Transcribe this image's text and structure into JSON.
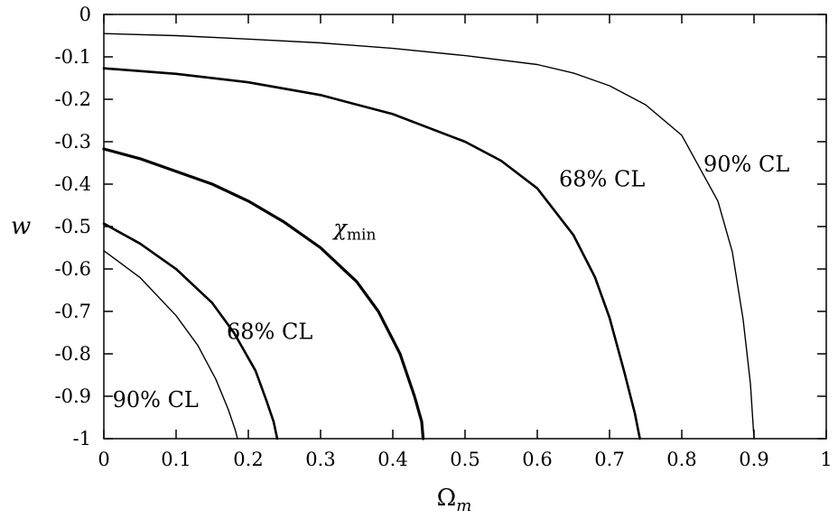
{
  "chart_data": {
    "type": "line",
    "xlabel": "Ω",
    "xlabel_sub": "m",
    "ylabel": "w",
    "xlim": [
      0,
      1
    ],
    "ylim": [
      -1,
      0
    ],
    "grid": false,
    "x_ticks": [
      {
        "value": 0,
        "label": "0"
      },
      {
        "value": 0.1,
        "label": "0.1"
      },
      {
        "value": 0.2,
        "label": "0.2"
      },
      {
        "value": 0.3,
        "label": "0.3"
      },
      {
        "value": 0.4,
        "label": "0.4"
      },
      {
        "value": 0.5,
        "label": "0.5"
      },
      {
        "value": 0.6,
        "label": "0.6"
      },
      {
        "value": 0.7,
        "label": "0.7"
      },
      {
        "value": 0.8,
        "label": "0.8"
      },
      {
        "value": 0.9,
        "label": "0.9"
      },
      {
        "value": 1,
        "label": "1"
      }
    ],
    "y_ticks": [
      {
        "value": 0,
        "label": "0"
      },
      {
        "value": -0.1,
        "label": "-0.1"
      },
      {
        "value": -0.2,
        "label": "-0.2"
      },
      {
        "value": -0.3,
        "label": "-0.3"
      },
      {
        "value": -0.4,
        "label": "-0.4"
      },
      {
        "value": -0.5,
        "label": "-0.5"
      },
      {
        "value": -0.6,
        "label": "-0.6"
      },
      {
        "value": -0.7,
        "label": "-0.7"
      },
      {
        "value": -0.8,
        "label": "-0.8"
      },
      {
        "value": -0.9,
        "label": "-0.9"
      },
      {
        "value": -1,
        "label": "-1"
      }
    ],
    "series": [
      {
        "width": 1.4,
        "points": [
          [
            0,
            -0.045
          ],
          [
            0.1,
            -0.05
          ],
          [
            0.2,
            -0.058
          ],
          [
            0.3,
            -0.067
          ],
          [
            0.4,
            -0.08
          ],
          [
            0.5,
            -0.097
          ],
          [
            0.6,
            -0.118
          ],
          [
            0.65,
            -0.138
          ],
          [
            0.7,
            -0.168
          ],
          [
            0.75,
            -0.213
          ],
          [
            0.8,
            -0.285
          ],
          [
            0.85,
            -0.44
          ],
          [
            0.87,
            -0.56
          ],
          [
            0.885,
            -0.72
          ],
          [
            0.895,
            -0.87
          ],
          [
            0.9,
            -1.0
          ]
        ]
      },
      {
        "width": 2.6,
        "points": [
          [
            0,
            -0.127
          ],
          [
            0.1,
            -0.14
          ],
          [
            0.2,
            -0.16
          ],
          [
            0.3,
            -0.19
          ],
          [
            0.4,
            -0.235
          ],
          [
            0.5,
            -0.3
          ],
          [
            0.55,
            -0.345
          ],
          [
            0.6,
            -0.41
          ],
          [
            0.65,
            -0.52
          ],
          [
            0.68,
            -0.62
          ],
          [
            0.7,
            -0.715
          ],
          [
            0.72,
            -0.84
          ],
          [
            0.735,
            -0.94
          ],
          [
            0.742,
            -1.0
          ]
        ]
      },
      {
        "width": 3.2,
        "points": [
          [
            0,
            -0.317
          ],
          [
            0.05,
            -0.34
          ],
          [
            0.1,
            -0.37
          ],
          [
            0.15,
            -0.4
          ],
          [
            0.2,
            -0.44
          ],
          [
            0.25,
            -0.49
          ],
          [
            0.3,
            -0.55
          ],
          [
            0.35,
            -0.63
          ],
          [
            0.38,
            -0.7
          ],
          [
            0.41,
            -0.8
          ],
          [
            0.43,
            -0.9
          ],
          [
            0.44,
            -0.96
          ],
          [
            0.442,
            -1.0
          ]
        ]
      },
      {
        "width": 2.6,
        "points": [
          [
            0,
            -0.493
          ],
          [
            0.05,
            -0.54
          ],
          [
            0.1,
            -0.6
          ],
          [
            0.15,
            -0.68
          ],
          [
            0.18,
            -0.75
          ],
          [
            0.21,
            -0.84
          ],
          [
            0.225,
            -0.91
          ],
          [
            0.235,
            -0.96
          ],
          [
            0.24,
            -1.0
          ]
        ]
      },
      {
        "width": 1.4,
        "points": [
          [
            0,
            -0.557
          ],
          [
            0.05,
            -0.62
          ],
          [
            0.1,
            -0.71
          ],
          [
            0.13,
            -0.78
          ],
          [
            0.155,
            -0.86
          ],
          [
            0.172,
            -0.93
          ],
          [
            0.182,
            -0.98
          ],
          [
            0.185,
            -1.0
          ]
        ]
      }
    ],
    "annotations": [
      {
        "text": "90% CL",
        "x": 0.83,
        "y": -0.37
      },
      {
        "text": "68% CL",
        "x": 0.63,
        "y": -0.405
      },
      {
        "text": "χ",
        "sub": "min",
        "x": 0.318,
        "y": -0.52
      },
      {
        "text": "68% CL",
        "x": 0.17,
        "y": -0.765
      },
      {
        "text": "90% CL",
        "x": 0.012,
        "y": -0.925
      }
    ]
  }
}
